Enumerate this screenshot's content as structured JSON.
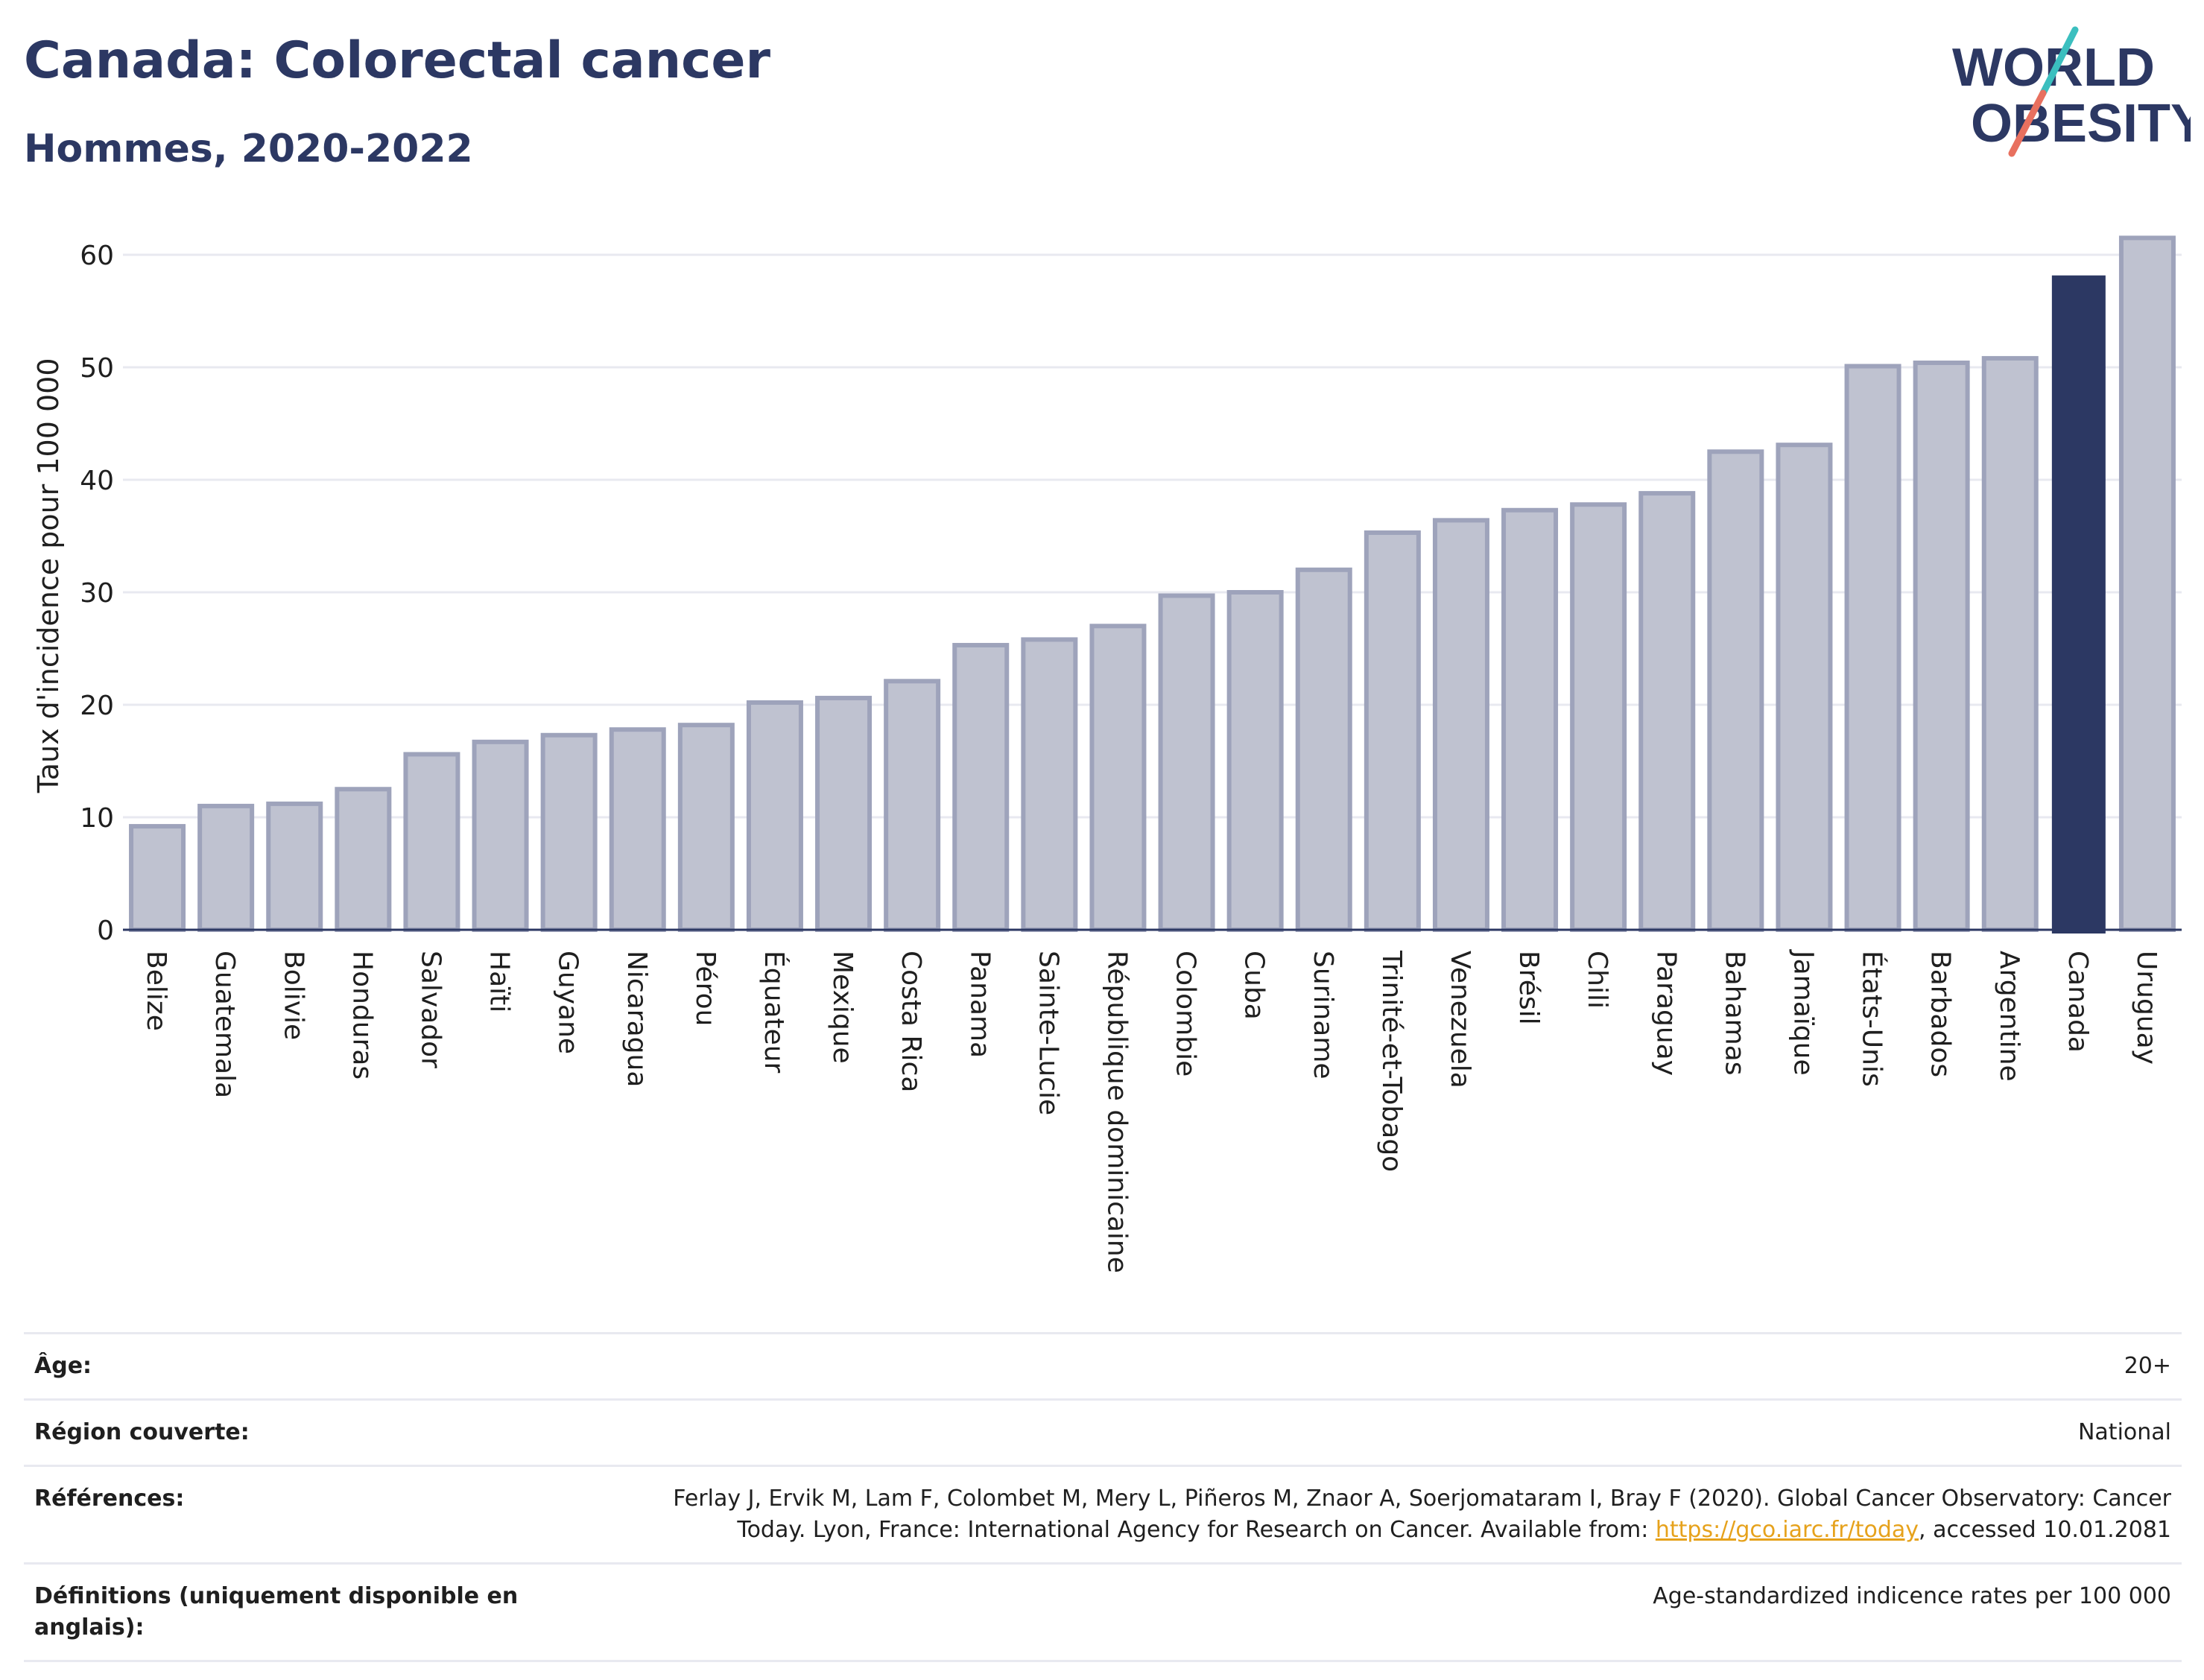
{
  "header": {
    "title": "Canada: Colorectal cancer",
    "subtitle": "Hommes, 2020-2022"
  },
  "logo": {
    "line1": "WORLD",
    "line2": "OBESITY",
    "colors": {
      "text": "#2c3863",
      "slash_teal": "#3bbfbf",
      "slash_coral": "#e8705f"
    }
  },
  "colors": {
    "bar": "#bfc2d0",
    "bar_stroke": "#9ea3bb",
    "highlight": "#2c3863",
    "grid": "#e8e9f0",
    "axis": "#2c3863",
    "text": "#1f1f1f"
  },
  "chart_data": {
    "type": "bar",
    "title": "Canada: Colorectal cancer",
    "subtitle": "Hommes, 2020-2022",
    "ylabel": "Taux d'incidence pour 100 000",
    "xlabel": "",
    "ylim": [
      0,
      63
    ],
    "yticks": [
      0,
      10,
      20,
      30,
      40,
      50,
      60
    ],
    "grid": true,
    "highlight": "Canada",
    "categories": [
      "Belize",
      "Guatemala",
      "Bolivie",
      "Honduras",
      "Salvador",
      "Haïti",
      "Guyane",
      "Nicaragua",
      "Pérou",
      "Équateur",
      "Mexique",
      "Costa Rica",
      "Panama",
      "Sainte-Lucie",
      "République dominicaine",
      "Colombie",
      "Cuba",
      "Suriname",
      "Trinité-et-Tobago",
      "Venezuela",
      "Brésil",
      "Chili",
      "Paraguay",
      "Bahamas",
      "Jamaïque",
      "États-Unis",
      "Barbados",
      "Argentine",
      "Canada",
      "Uruguay"
    ],
    "values": [
      9.2,
      11.0,
      11.2,
      12.5,
      15.6,
      16.7,
      17.3,
      17.8,
      18.2,
      20.2,
      20.6,
      22.1,
      25.3,
      25.8,
      27.0,
      29.7,
      30.0,
      32.0,
      35.3,
      36.4,
      37.3,
      37.8,
      38.8,
      42.5,
      43.1,
      50.1,
      50.4,
      50.8,
      58.1,
      61.5
    ]
  },
  "info": {
    "rows": [
      {
        "label": "Âge:",
        "value": "20+"
      },
      {
        "label": "Région couverte:",
        "value": "National"
      },
      {
        "label": "Références:",
        "value_pre": "Ferlay J, Ervik M, Lam F, Colombet M, Mery L, Piñeros M, Znaor A, Soerjomataram I, Bray F (2020). Global Cancer Observatory: Cancer Today. Lyon, France: International Agency for Research on Cancer. Available from: ",
        "link": "https://gco.iarc.fr/today",
        "value_post": ", accessed 10.01.2081"
      },
      {
        "label": "Définitions (uniquement disponible en anglais):",
        "value": "Age-standardized indicence rates per 100 000"
      }
    ]
  }
}
